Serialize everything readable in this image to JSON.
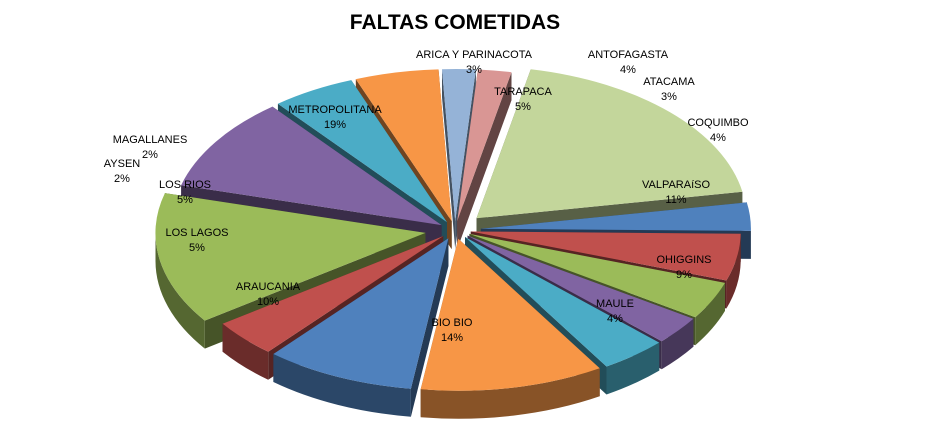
{
  "chart_data": {
    "type": "pie",
    "title": "FALTAS COMETIDAS",
    "exploded": true,
    "three_d": true,
    "legend": "none",
    "slices": [
      {
        "label": "ARICA Y PARINACOTA",
        "percent_label": "3%",
        "value": 3,
        "color": "#4f81bd",
        "label_position": "outside"
      },
      {
        "label": "TARAPACA",
        "percent_label": "5%",
        "value": 5,
        "color": "#c0504d",
        "label_position": "inside"
      },
      {
        "label": "ANTOFAGASTA",
        "percent_label": "4%",
        "value": 4,
        "color": "#9bbb59",
        "label_position": "outside"
      },
      {
        "label": "ATACAMA",
        "percent_label": "3%",
        "value": 3,
        "color": "#8064a2",
        "label_position": "outside"
      },
      {
        "label": "COQUIMBO",
        "percent_label": "4%",
        "value": 4,
        "color": "#4bacc6",
        "label_position": "outside"
      },
      {
        "label": "VALPARAíSO",
        "percent_label": "11%",
        "value": 11,
        "color": "#f79646",
        "label_position": "inside"
      },
      {
        "label": "OHIGGINS",
        "percent_label": "9%",
        "value": 9,
        "color": "#4f81bd",
        "label_position": "inside"
      },
      {
        "label": "MAULE",
        "percent_label": "4%",
        "value": 4,
        "color": "#c0504d",
        "label_position": "inside"
      },
      {
        "label": "BIO BIO",
        "percent_label": "14%",
        "value": 14,
        "color": "#9bbb59",
        "label_position": "inside"
      },
      {
        "label": "ARAUCANIA",
        "percent_label": "10%",
        "value": 10,
        "color": "#8064a2",
        "label_position": "inside"
      },
      {
        "label": "LOS LAGOS",
        "percent_label": "5%",
        "value": 5,
        "color": "#4bacc6",
        "label_position": "inside"
      },
      {
        "label": "LOS RIOS",
        "percent_label": "5%",
        "value": 5,
        "color": "#f79646",
        "label_position": "inside"
      },
      {
        "label": "AYSEN",
        "percent_label": "2%",
        "value": 2,
        "color": "#95b3d7",
        "label_position": "outside"
      },
      {
        "label": "MAGALLANES",
        "percent_label": "2%",
        "value": 2,
        "color": "#d99694",
        "label_position": "outside"
      },
      {
        "label": "METROPOLITANA",
        "percent_label": "19%",
        "value": 19,
        "color": "#c3d69b",
        "label_position": "inside"
      }
    ]
  }
}
